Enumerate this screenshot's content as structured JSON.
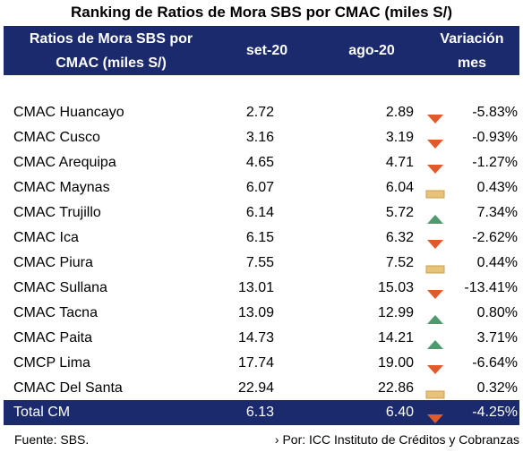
{
  "title": "Ranking de Ratios de Mora SBS por CMAC (miles S/)",
  "header": {
    "col1_line1": "Ratios de Mora SBS por",
    "col1_line2": "CMAC (miles S/)",
    "col2": "set-20",
    "col3": "ago-20",
    "col4_line1": "Variación",
    "col4_line2": "mes"
  },
  "colors": {
    "header_bg": "#1a2a6c",
    "down": "#e05a2b",
    "up": "#4e9a6e",
    "flat": "#e6c27a"
  },
  "rows": [
    {
      "name": "CMAC Huancayo",
      "set": "2.72",
      "ago": "2.89",
      "trend": "down",
      "var": "-5.83%"
    },
    {
      "name": "CMAC Cusco",
      "set": "3.16",
      "ago": "3.19",
      "trend": "down",
      "var": "-0.93%"
    },
    {
      "name": "CMAC Arequipa",
      "set": "4.65",
      "ago": "4.71",
      "trend": "down",
      "var": "-1.27%"
    },
    {
      "name": "CMAC Maynas",
      "set": "6.07",
      "ago": "6.04",
      "trend": "flat",
      "var": "0.43%"
    },
    {
      "name": "CMAC Trujillo",
      "set": "6.14",
      "ago": "5.72",
      "trend": "up",
      "var": "7.34%"
    },
    {
      "name": "CMAC Ica",
      "set": "6.15",
      "ago": "6.32",
      "trend": "down",
      "var": "-2.62%"
    },
    {
      "name": "CMAC Piura",
      "set": "7.55",
      "ago": "7.52",
      "trend": "flat",
      "var": "0.44%"
    },
    {
      "name": "CMAC Sullana",
      "set": "13.01",
      "ago": "15.03",
      "trend": "down",
      "var": "-13.41%"
    },
    {
      "name": "CMAC Tacna",
      "set": "13.09",
      "ago": "12.99",
      "trend": "up",
      "var": "0.80%"
    },
    {
      "name": "CMAC Paita",
      "set": "14.73",
      "ago": "14.21",
      "trend": "up",
      "var": "3.71%"
    },
    {
      "name": "CMCP Lima",
      "set": "17.74",
      "ago": "19.00",
      "trend": "down",
      "var": "-6.64%"
    },
    {
      "name": "CMAC Del Santa",
      "set": "22.94",
      "ago": "22.86",
      "trend": "flat",
      "var": "0.32%"
    }
  ],
  "total": {
    "name": "Total CM",
    "set": "6.13",
    "ago": "6.40",
    "trend": "down",
    "var": "-4.25%"
  },
  "footer": {
    "source": "Fuente: SBS.",
    "credit": "› Por: ICC Instituto de Créditos y Cobranzas"
  }
}
